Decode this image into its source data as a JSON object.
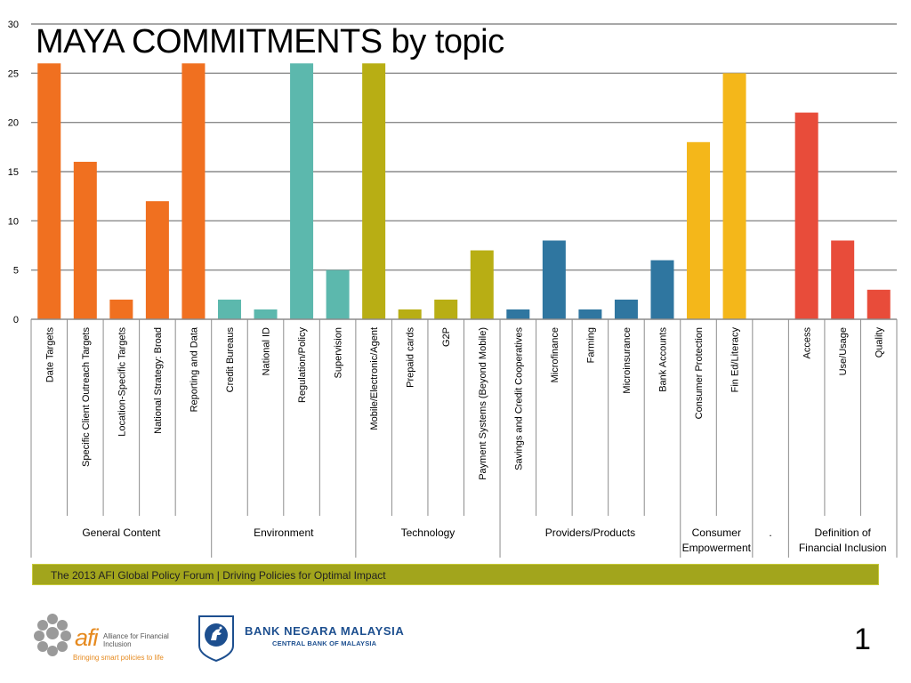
{
  "slide": {
    "title": "MAYA COMMITMENTS by topic",
    "footer_text": "The 2013 AFI Global Policy Forum | Driving Policies for Optimal Impact",
    "footer_color": "#a2a51c",
    "page_number": "1"
  },
  "logos": {
    "afi": {
      "word": "afi",
      "name": "Alliance for Financial Inclusion",
      "tagline": "Bringing smart policies to life",
      "icon": "afi-globe-icon"
    },
    "bnm": {
      "name": "BANK NEGARA MALAYSIA",
      "subtitle": "CENTRAL BANK OF MALAYSIA",
      "icon": "bnm-crest-icon",
      "color": "#1d4f8f"
    }
  },
  "chart_data": {
    "type": "bar",
    "title": "MAYA COMMITMENTS by topic",
    "xlabel": "",
    "ylabel": "",
    "ylim": [
      0,
      30
    ],
    "yticks": [
      0,
      5,
      10,
      15,
      20,
      25,
      30
    ],
    "grid": true,
    "categories": [
      "Date Targets",
      "Specific Client Outreach Targets",
      "Location-Specific Targets",
      "National Strategy: Broad",
      "Reporting and Data",
      "Credit Bureaus",
      "National ID",
      "Regulation/Policy",
      "Supervision",
      "Mobile/Electronic/Agent",
      "Prepaid cards",
      "G2P",
      "Payment Systems (Beyond Mobile)",
      "Savings and Credit Cooperatives",
      "Microfinance",
      "Farming",
      "Microinsurance",
      "Bank Accounts",
      "Consumer Protection",
      "Fin Ed/Literacy",
      "",
      "Access",
      "Use/Usage",
      "Quality"
    ],
    "values": [
      26,
      16,
      2,
      12,
      26,
      2,
      1,
      26,
      5,
      26,
      1,
      2,
      7,
      1,
      8,
      1,
      2,
      6,
      18,
      25,
      null,
      21,
      8,
      3
    ],
    "bar_colors": [
      "#f07020",
      "#f07020",
      "#f07020",
      "#f07020",
      "#f07020",
      "#5cb8ad",
      "#5cb8ad",
      "#5cb8ad",
      "#5cb8ad",
      "#b8ae14",
      "#b8ae14",
      "#b8ae14",
      "#b8ae14",
      "#2f76a0",
      "#2f76a0",
      "#2f76a0",
      "#2f76a0",
      "#2f76a0",
      "#f4b71a",
      "#f4b71a",
      "#ffffff",
      "#e84c3a",
      "#e84c3a",
      "#e84c3a"
    ],
    "groups": [
      {
        "label": "General Content",
        "count": 5
      },
      {
        "label": "Environment",
        "count": 4
      },
      {
        "label": "Technology",
        "count": 4
      },
      {
        "label": "Providers/Products",
        "count": 5
      },
      {
        "label": "Consumer Empowerment",
        "count": 2
      },
      {
        "label": ".",
        "count": 1
      },
      {
        "label": "Definition of Financial Inclusion",
        "count": 3
      }
    ]
  }
}
